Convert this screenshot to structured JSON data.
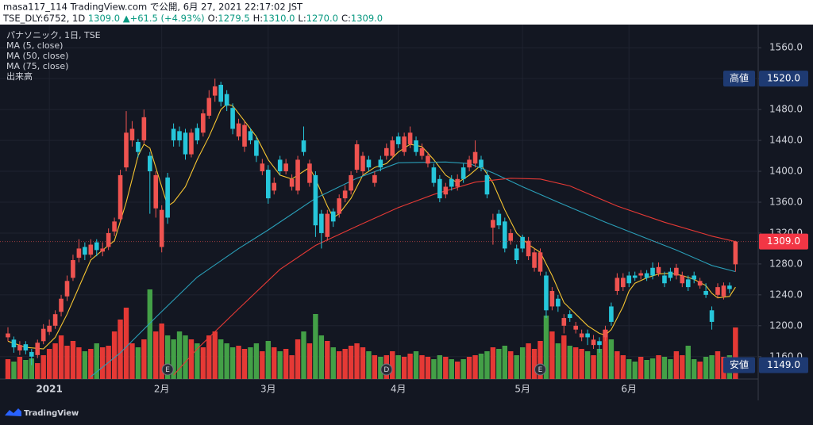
{
  "header": {
    "line1": "masa117_114 TradingView.com で公開, 6月 27, 2021 22:17:02 JST",
    "symbol": "TSE_DLY:6752, 1D",
    "price": "1309.0",
    "change": "▲+61.5 (+4.93%)",
    "ohlc": [
      {
        "key": "O:",
        "value": "1279.5"
      },
      {
        "key": "H:",
        "value": "1310.0"
      },
      {
        "key": "L:",
        "value": "1270.0"
      },
      {
        "key": "C:",
        "value": "1309.0"
      }
    ]
  },
  "footer": {
    "brand": "TradingView"
  },
  "chart_data": {
    "type": "candlestick",
    "legend": [
      "パナソニック, 1日, TSE",
      "MA (5, close)",
      "MA (50, close)",
      "MA (75, close)",
      "出来高"
    ],
    "ylim": [
      1131,
      1590
    ],
    "yticks": [
      {
        "value": 1160,
        "label": "1160.0"
      },
      {
        "value": 1200,
        "label": "1200.0"
      },
      {
        "value": 1240,
        "label": "1240.0"
      },
      {
        "value": 1280,
        "label": "1280.0"
      },
      {
        "value": 1320,
        "label": "1320.0"
      },
      {
        "value": 1360,
        "label": "1360.0"
      },
      {
        "value": 1400,
        "label": "1400.0"
      },
      {
        "value": 1440,
        "label": "1440.0"
      },
      {
        "value": 1480,
        "label": "1480.0"
      },
      {
        "value": 1520,
        "label": "1520.0"
      },
      {
        "value": 1560,
        "label": "1560.0"
      }
    ],
    "xlabels": [
      {
        "index": 7,
        "label": "2021"
      },
      {
        "index": 26,
        "label": "2月"
      },
      {
        "index": 44,
        "label": "3月"
      },
      {
        "index": 66,
        "label": "4月"
      },
      {
        "index": 87,
        "label": "5月"
      },
      {
        "index": 105,
        "label": "6月"
      }
    ],
    "grid": true,
    "up_color": "#ef5350",
    "down_color": "#26c6da",
    "volume_up_color": "#e53935",
    "volume_down_color": "#43a047",
    "open": [
      1185,
      1182,
      1168,
      1176,
      1166,
      1162,
      1180,
      1192,
      1200,
      1218,
      1238,
      1262,
      1288,
      1302,
      1292,
      1308,
      1296,
      1302,
      1322,
      1338,
      1405,
      1440,
      1438,
      1440,
      1420,
      1352,
      1302,
      1392,
      1455,
      1452,
      1450,
      1422,
      1456,
      1450,
      1472,
      1498,
      1512,
      1500,
      1482,
      1445,
      1432,
      1452,
      1440,
      1400,
      1402,
      1375,
      1415,
      1400,
      1380,
      1375,
      1440,
      1385,
      1395,
      1345,
      1315,
      1348,
      1345,
      1365,
      1375,
      1402,
      1400,
      1415,
      1385,
      1415,
      1420,
      1420,
      1445,
      1425,
      1435,
      1440,
      1420,
      1410,
      1405,
      1390,
      1370,
      1390,
      1380,
      1405,
      1405,
      1410,
      1415,
      1395,
      1327,
      1345,
      1335,
      1310,
      1300,
      1315,
      1290,
      1275,
      1270,
      1265,
      1225,
      1235,
      1200,
      1215,
      1195,
      1185,
      1190,
      1175,
      1180,
      1185,
      1225,
      1245,
      1250,
      1265,
      1265,
      1265,
      1268,
      1275,
      1268,
      1265,
      1270,
      1265,
      1255,
      1260,
      1265,
      1252,
      1245,
      1220,
      1240,
      1238,
      1252,
      1279.5
    ],
    "high": [
      1198,
      1186,
      1180,
      1180,
      1170,
      1182,
      1202,
      1208,
      1220,
      1240,
      1265,
      1292,
      1312,
      1308,
      1312,
      1312,
      1308,
      1326,
      1340,
      1402,
      1478,
      1465,
      1442,
      1480,
      1425,
      1400,
      1356,
      1398,
      1462,
      1458,
      1455,
      1455,
      1462,
      1480,
      1505,
      1520,
      1516,
      1505,
      1488,
      1468,
      1465,
      1456,
      1445,
      1416,
      1408,
      1392,
      1420,
      1416,
      1396,
      1420,
      1458,
      1415,
      1400,
      1350,
      1350,
      1352,
      1370,
      1382,
      1400,
      1440,
      1425,
      1420,
      1400,
      1420,
      1436,
      1445,
      1450,
      1450,
      1458,
      1445,
      1436,
      1425,
      1410,
      1395,
      1385,
      1395,
      1396,
      1410,
      1420,
      1440,
      1420,
      1400,
      1345,
      1350,
      1340,
      1325,
      1305,
      1318,
      1315,
      1300,
      1300,
      1270,
      1250,
      1240,
      1215,
      1220,
      1205,
      1195,
      1195,
      1188,
      1185,
      1200,
      1230,
      1268,
      1268,
      1270,
      1270,
      1272,
      1272,
      1282,
      1282,
      1270,
      1275,
      1280,
      1270,
      1265,
      1270,
      1262,
      1255,
      1225,
      1255,
      1256,
      1256,
      1310
    ],
    "low": [
      1180,
      1165,
      1162,
      1163,
      1149,
      1158,
      1176,
      1188,
      1196,
      1212,
      1232,
      1258,
      1282,
      1285,
      1288,
      1290,
      1290,
      1298,
      1316,
      1335,
      1400,
      1432,
      1418,
      1436,
      1345,
      1340,
      1295,
      1332,
      1432,
      1432,
      1415,
      1418,
      1435,
      1445,
      1468,
      1490,
      1484,
      1478,
      1448,
      1440,
      1425,
      1435,
      1412,
      1395,
      1358,
      1370,
      1395,
      1396,
      1375,
      1370,
      1420,
      1380,
      1315,
      1300,
      1310,
      1328,
      1340,
      1360,
      1370,
      1398,
      1395,
      1400,
      1380,
      1400,
      1415,
      1416,
      1430,
      1420,
      1430,
      1420,
      1415,
      1405,
      1380,
      1360,
      1365,
      1375,
      1375,
      1385,
      1400,
      1405,
      1400,
      1365,
      1305,
      1325,
      1295,
      1305,
      1280,
      1295,
      1285,
      1270,
      1265,
      1210,
      1220,
      1218,
      1190,
      1205,
      1190,
      1180,
      1175,
      1170,
      1165,
      1180,
      1200,
      1240,
      1245,
      1250,
      1258,
      1260,
      1258,
      1260,
      1264,
      1250,
      1258,
      1260,
      1250,
      1245,
      1255,
      1248,
      1236,
      1195,
      1236,
      1234,
      1242,
      1270
    ],
    "close": [
      1190,
      1172,
      1175,
      1168,
      1160,
      1178,
      1196,
      1200,
      1215,
      1235,
      1258,
      1285,
      1300,
      1292,
      1305,
      1298,
      1300,
      1320,
      1335,
      1395,
      1450,
      1455,
      1425,
      1470,
      1400,
      1395,
      1350,
      1340,
      1440,
      1440,
      1422,
      1450,
      1440,
      1475,
      1495,
      1510,
      1490,
      1485,
      1455,
      1462,
      1460,
      1440,
      1420,
      1410,
      1365,
      1385,
      1400,
      1410,
      1390,
      1415,
      1425,
      1410,
      1330,
      1320,
      1345,
      1335,
      1365,
      1375,
      1395,
      1435,
      1420,
      1405,
      1395,
      1405,
      1430,
      1440,
      1435,
      1445,
      1450,
      1425,
      1430,
      1420,
      1385,
      1365,
      1380,
      1380,
      1390,
      1390,
      1415,
      1425,
      1405,
      1370,
      1337,
      1330,
      1300,
      1320,
      1285,
      1300,
      1310,
      1295,
      1295,
      1220,
      1245,
      1225,
      1210,
      1210,
      1200,
      1190,
      1185,
      1182,
      1175,
      1195,
      1205,
      1262,
      1262,
      1255,
      1262,
      1268,
      1262,
      1265,
      1276,
      1255,
      1262,
      1275,
      1265,
      1250,
      1260,
      1258,
      1240,
      1205,
      1250,
      1252,
      1247.5,
      1309
    ],
    "volume": [
      25,
      22,
      28,
      24,
      26,
      20,
      30,
      38,
      45,
      55,
      42,
      48,
      40,
      35,
      38,
      45,
      40,
      42,
      60,
      75,
      90,
      45,
      40,
      50,
      113,
      60,
      70,
      55,
      50,
      60,
      55,
      50,
      45,
      40,
      55,
      60,
      50,
      45,
      40,
      42,
      38,
      40,
      45,
      35,
      48,
      40,
      35,
      38,
      30,
      50,
      60,
      45,
      82,
      55,
      48,
      40,
      35,
      38,
      42,
      45,
      40,
      35,
      30,
      28,
      30,
      35,
      30,
      28,
      32,
      35,
      30,
      28,
      25,
      30,
      28,
      25,
      22,
      25,
      28,
      30,
      32,
      35,
      40,
      38,
      42,
      35,
      30,
      40,
      45,
      38,
      48,
      80,
      60,
      45,
      55,
      42,
      40,
      38,
      35,
      30,
      38,
      62,
      50,
      35,
      30,
      25,
      22,
      28,
      24,
      26,
      30,
      28,
      25,
      35,
      30,
      42,
      25,
      22,
      28,
      30,
      35,
      28,
      30,
      65
    ],
    "vlim": [
      0,
      150
    ],
    "ma": [
      {
        "name": "MA (5, close)",
        "color": "#f5c431",
        "x": [
          0,
          3,
          6,
          8,
          10,
          12,
          14,
          16,
          18,
          20,
          22,
          23,
          24,
          26,
          27,
          28,
          30,
          32,
          34,
          36,
          37,
          38,
          40,
          42,
          44,
          46,
          48,
          50,
          51,
          52,
          54,
          55,
          56,
          58,
          60,
          62,
          64,
          66,
          68,
          70,
          72,
          74,
          76,
          78,
          80,
          82,
          84,
          86,
          88,
          90,
          92,
          94,
          96,
          98,
          100,
          101,
          102,
          104,
          105,
          106,
          108,
          110,
          112,
          114,
          116,
          118,
          119,
          120,
          122,
          123
        ],
        "values": [
          1180,
          1172,
          1170,
          1185,
          1215,
          1250,
          1285,
          1298,
          1310,
          1360,
          1420,
          1435,
          1430,
          1380,
          1355,
          1360,
          1380,
          1415,
          1445,
          1480,
          1487,
          1485,
          1465,
          1445,
          1415,
          1395,
          1390,
          1400,
          1405,
          1390,
          1355,
          1340,
          1345,
          1365,
          1395,
          1405,
          1410,
          1425,
          1435,
          1432,
          1415,
          1395,
          1385,
          1395,
          1408,
          1385,
          1350,
          1320,
          1305,
          1295,
          1265,
          1230,
          1215,
          1200,
          1190,
          1188,
          1195,
          1225,
          1245,
          1255,
          1262,
          1267,
          1268,
          1265,
          1260,
          1252,
          1242,
          1236,
          1238,
          1250
        ]
      },
      {
        "name": "MA (50, close)",
        "color": "#2a9fb8",
        "x": [
          14,
          19,
          25,
          32,
          39,
          44,
          52,
          59,
          66,
          74,
          78,
          82,
          87,
          93,
          101,
          106,
          113,
          119,
          123
        ],
        "values": [
          1134,
          1165,
          1211,
          1263,
          1300,
          1324,
          1365,
          1391,
          1411,
          1412,
          1410,
          1398,
          1380,
          1360,
          1334,
          1319,
          1298,
          1278,
          1270
        ]
      },
      {
        "name": "MA (75, close)",
        "color": "#e53935",
        "x": [
          28,
          32,
          39,
          46,
          52,
          59,
          66,
          72,
          79,
          85,
          90,
          95,
          103,
          111,
          119,
          123
        ],
        "values": [
          1136,
          1170,
          1222,
          1273,
          1304,
          1329,
          1353,
          1370,
          1386,
          1391,
          1390,
          1381,
          1355,
          1334,
          1316,
          1309
        ]
      }
    ],
    "events": [
      {
        "index": 27,
        "label": "E"
      },
      {
        "index": 64,
        "label": "D"
      },
      {
        "index": 90,
        "label": "E"
      }
    ],
    "extremes": [
      {
        "label": "高値",
        "value": 1520,
        "value_label": "1520.0"
      },
      {
        "label": "安値",
        "value": 1149,
        "value_label": "1149.0"
      }
    ],
    "last_price": {
      "value": 1309,
      "label": "1309.0"
    }
  }
}
